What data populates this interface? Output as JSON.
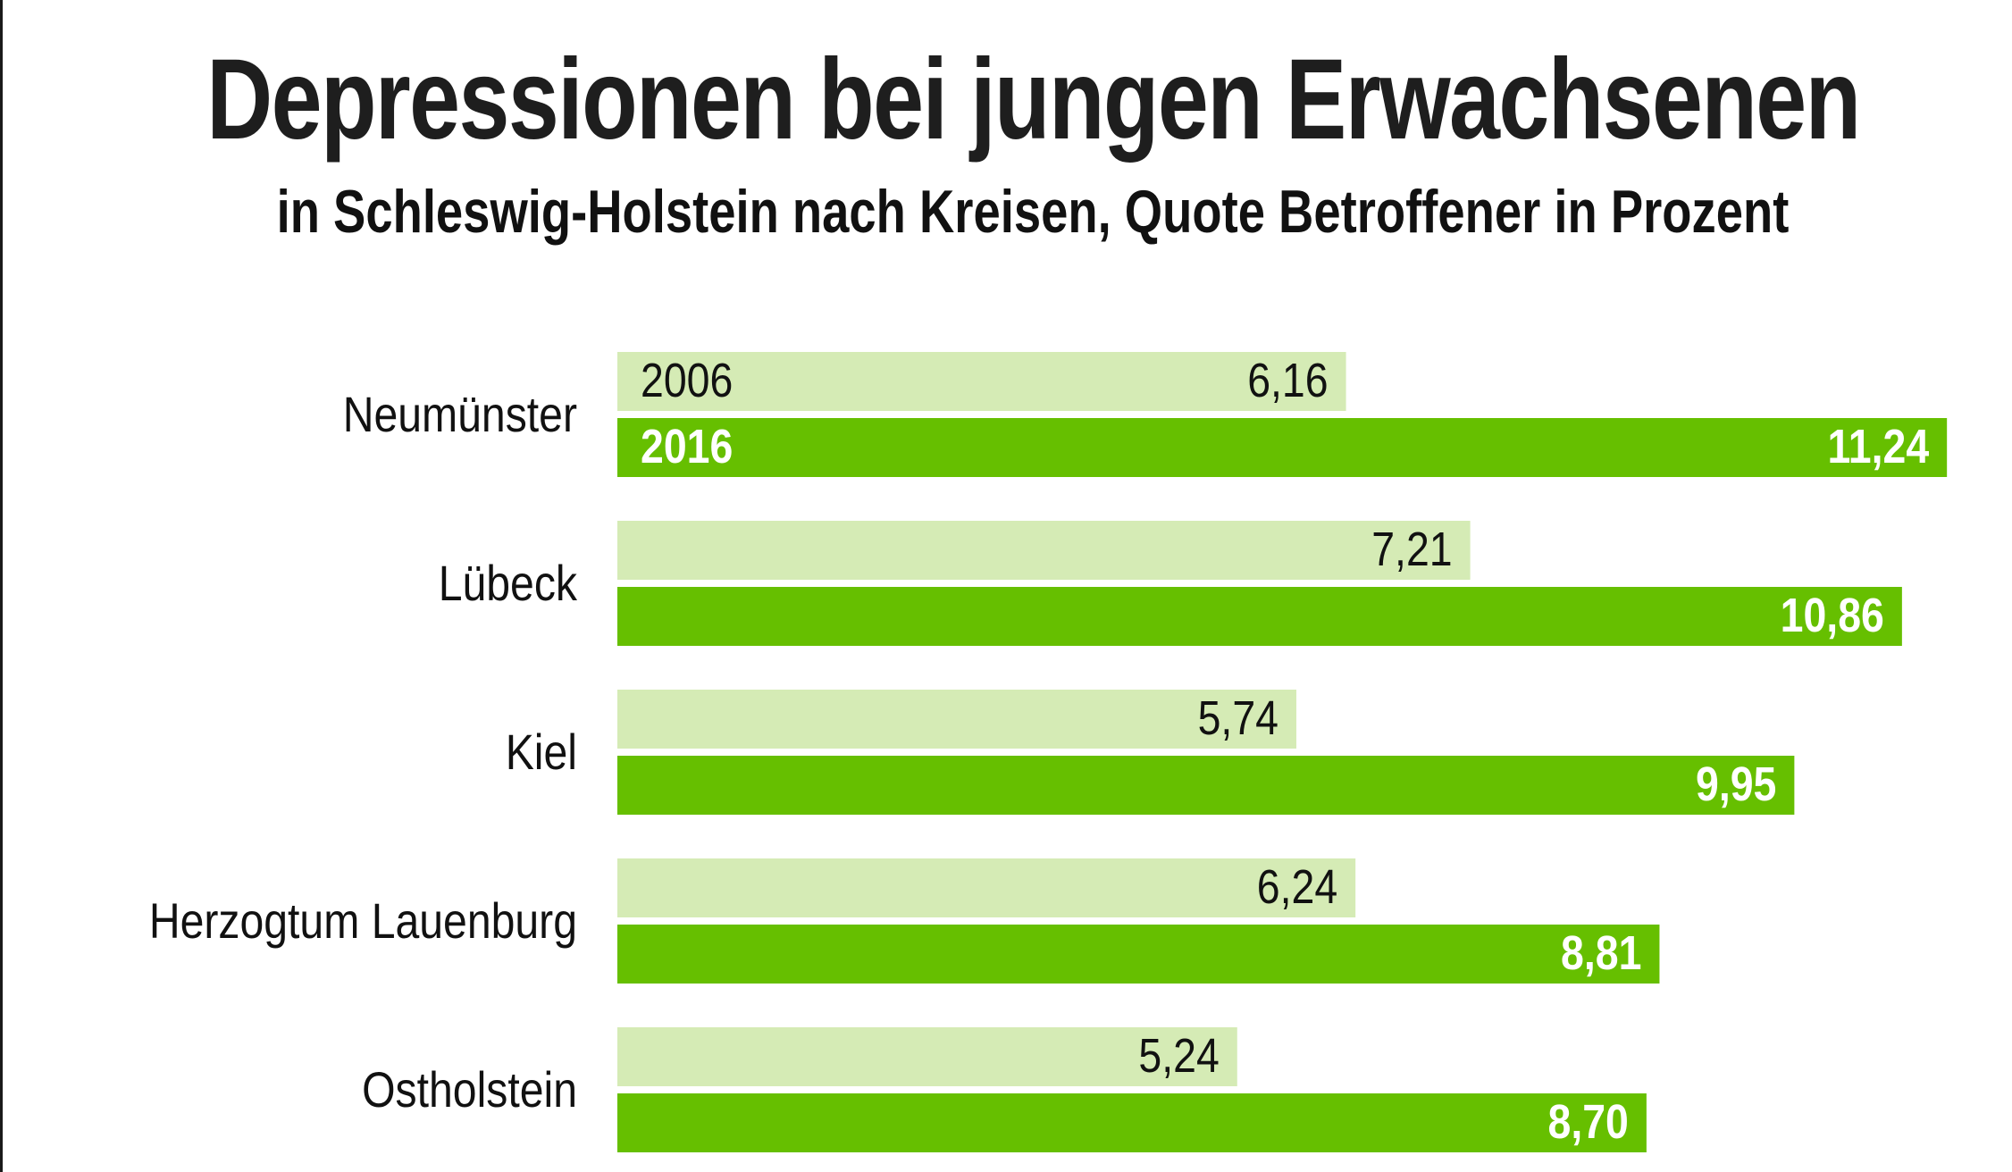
{
  "title": "Depressionen bei jungen Erwachsenen",
  "subtitle": "in Schleswig-Holstein nach Kreisen, Quote Betroffener in Prozent",
  "colors": {
    "series_2006": "#d5ebb5",
    "series_2016": "#66bf00",
    "text_dark": "#111111",
    "text_light": "#ffffff"
  },
  "chart_data": {
    "type": "bar",
    "orientation": "horizontal",
    "title": "Depressionen bei jungen Erwachsenen",
    "subtitle": "in Schleswig-Holstein nach Kreisen, Quote Betroffener in Prozent",
    "xlabel": "",
    "ylabel": "",
    "xlim": [
      0,
      11.24
    ],
    "grid": false,
    "legend": "inline-first-group",
    "categories": [
      "Neumünster",
      "Lübeck",
      "Kiel",
      "Herzogtum Lauenburg",
      "Ostholstein"
    ],
    "series": [
      {
        "name": "2006",
        "values": [
          6.16,
          7.21,
          5.74,
          6.24,
          5.24
        ],
        "labels": [
          "6,16",
          "7,21",
          "5,74",
          "6,24",
          "5,24"
        ]
      },
      {
        "name": "2016",
        "values": [
          11.24,
          10.86,
          9.95,
          8.81,
          8.7
        ],
        "labels": [
          "11,24",
          "10,86",
          "9,95",
          "8,81",
          "8,70"
        ]
      }
    ]
  }
}
